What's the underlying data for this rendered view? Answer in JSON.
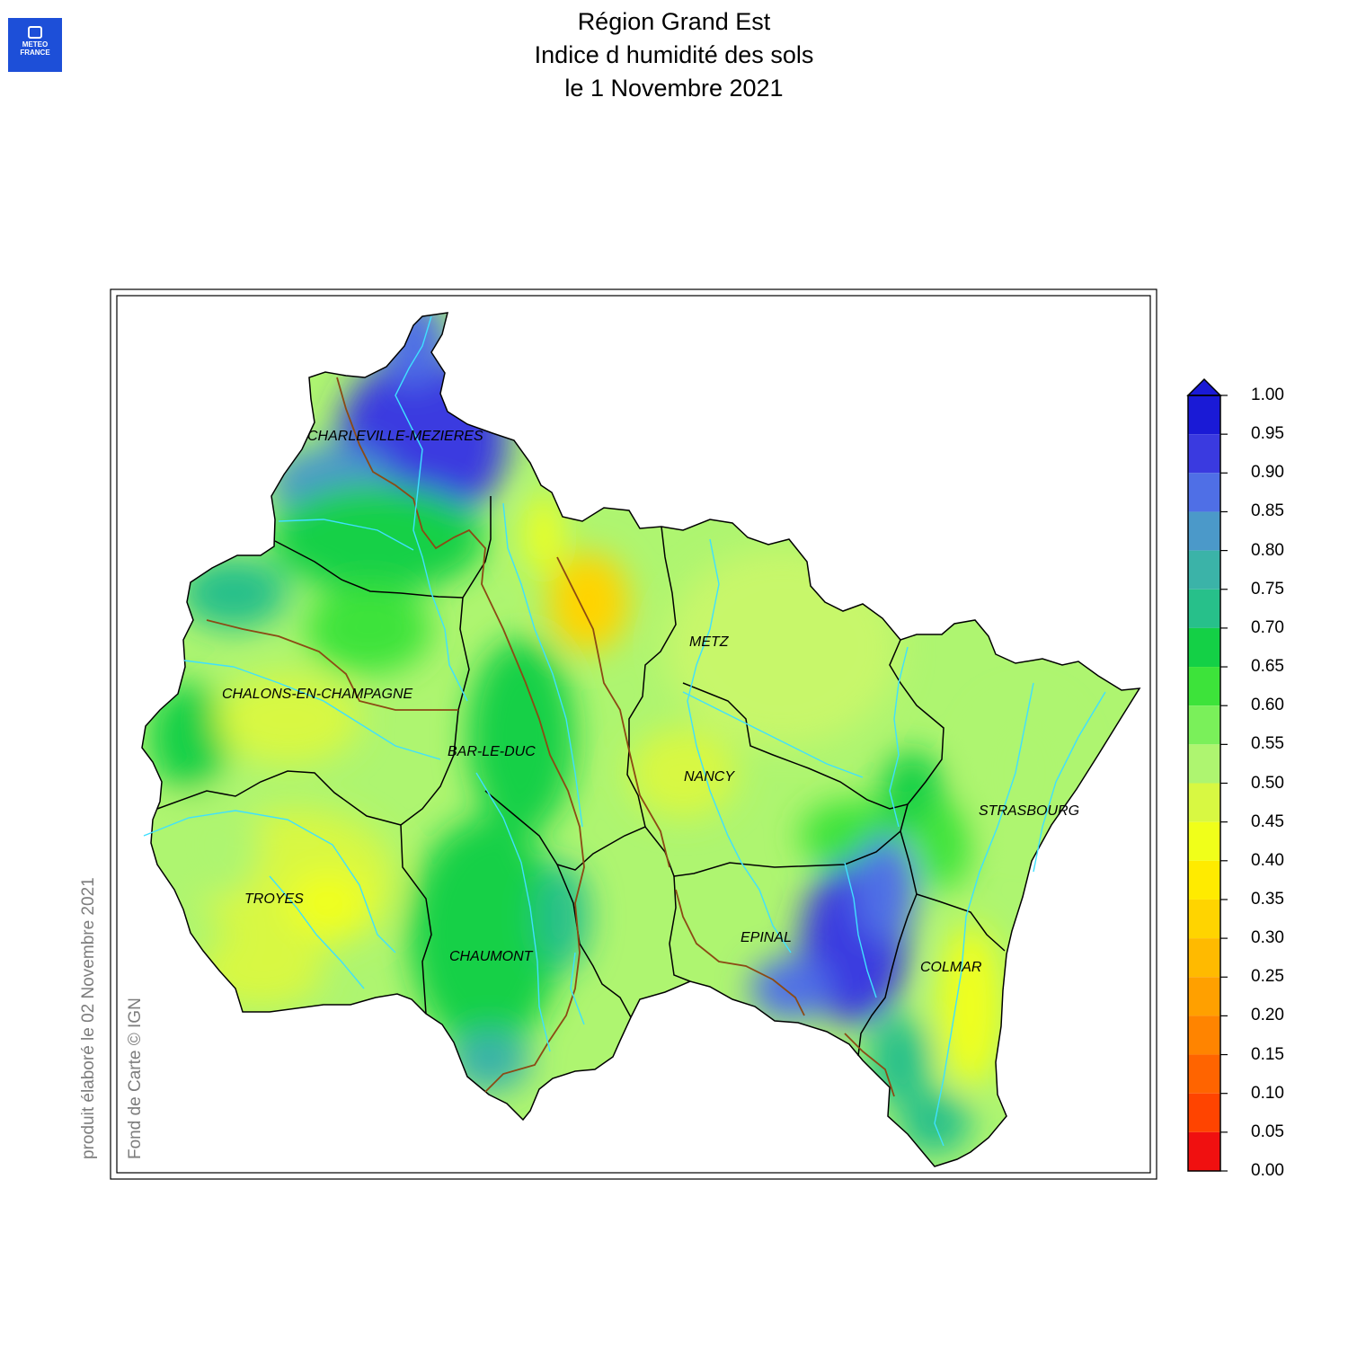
{
  "logo": {
    "line1": "METEO",
    "line2": "FRANCE"
  },
  "title": {
    "line1": "Région Grand Est",
    "line2": "Indice d humidité des sols",
    "line3": "le 1 Novembre 2021"
  },
  "side_text": {
    "produced": "produit élaboré le 02 Novembre 2021",
    "basemap": "Fond de Carte © IGN"
  },
  "cities": [
    {
      "name": "CHARLEVILLE-MEZIERES"
    },
    {
      "name": "METZ"
    },
    {
      "name": "CHALONS-EN-CHAMPAGNE"
    },
    {
      "name": "BAR-LE-DUC"
    },
    {
      "name": "NANCY"
    },
    {
      "name": "STRASBOURG"
    },
    {
      "name": "TROYES"
    },
    {
      "name": "CHAUMONT"
    },
    {
      "name": "EPINAL"
    },
    {
      "name": "COLMAR"
    }
  ],
  "colorbar": {
    "labels": [
      "1.00",
      "0.95",
      "0.90",
      "0.85",
      "0.80",
      "0.75",
      "0.70",
      "0.65",
      "0.60",
      "0.55",
      "0.50",
      "0.45",
      "0.40",
      "0.35",
      "0.30",
      "0.25",
      "0.20",
      "0.15",
      "0.10",
      "0.05",
      "0.00"
    ],
    "colors_top_to_bottom": [
      "#1a1ad6",
      "#3a3ae0",
      "#4f6fe6",
      "#4b99c9",
      "#3bb3a8",
      "#27c08a",
      "#14d046",
      "#3de33a",
      "#7af05a",
      "#aef570",
      "#d8f842",
      "#f0ff1a",
      "#ffeb00",
      "#ffd400",
      "#ffba00",
      "#ffa000",
      "#ff8400",
      "#ff6400",
      "#ff4400",
      "#f01010"
    ],
    "arrow_color": "#1a1ad6"
  },
  "map_colors": {
    "frame": "#000000",
    "rivers": "#3fe0ff",
    "major_boundary": "#8b4a14",
    "dept_boundary": "#000000"
  }
}
